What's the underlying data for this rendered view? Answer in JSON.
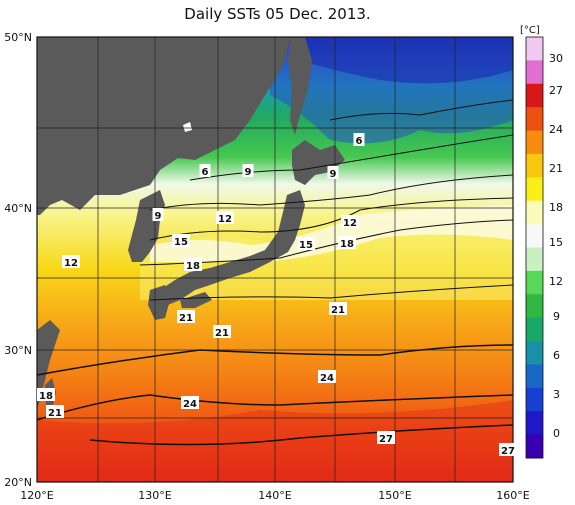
{
  "title": "Daily SSTs 05 Dec. 2013.",
  "colorbar": {
    "unit": "[°C]",
    "ticks": [
      "30",
      "27",
      "24",
      "21",
      "18",
      "15",
      "12",
      "9",
      "6",
      "3",
      "0"
    ],
    "colors": [
      "#f0c8f0",
      "#e070d0",
      "#d81818",
      "#ee5010",
      "#f88c10",
      "#f8c810",
      "#f8f018",
      "#fcfcb8",
      "#f8f8f8",
      "#c8f0c0",
      "#58d858",
      "#30b840",
      "#18a868",
      "#1890a8",
      "#1868c8",
      "#1840d0",
      "#2018c8",
      "#3800b0"
    ]
  },
  "map": {
    "lat_labels": [
      "50°N",
      "40°N",
      "30°N",
      "20°N"
    ],
    "lon_labels": [
      "120°E",
      "130°E",
      "140°E",
      "150°E",
      "160°E"
    ],
    "contour_labels": [
      {
        "id": "c6a",
        "text": "6"
      },
      {
        "id": "c9a",
        "text": "9"
      },
      {
        "id": "c9b",
        "text": "9"
      },
      {
        "id": "c6b",
        "text": "6"
      },
      {
        "id": "c9c",
        "text": "9"
      },
      {
        "id": "c12a",
        "text": "12"
      },
      {
        "id": "c12b",
        "text": "12"
      },
      {
        "id": "c15a",
        "text": "15"
      },
      {
        "id": "c15b",
        "text": "15"
      },
      {
        "id": "c18a",
        "text": "18"
      },
      {
        "id": "c12c",
        "text": "12"
      },
      {
        "id": "c18b",
        "text": "18"
      },
      {
        "id": "c21a",
        "text": "21"
      },
      {
        "id": "c21b",
        "text": "21"
      },
      {
        "id": "c21c",
        "text": "21"
      },
      {
        "id": "c24a",
        "text": "24"
      },
      {
        "id": "c24b",
        "text": "24"
      },
      {
        "id": "c18c",
        "text": "18"
      },
      {
        "id": "c21d",
        "text": "21"
      },
      {
        "id": "c27a",
        "text": "27"
      },
      {
        "id": "c27b",
        "text": "27"
      }
    ]
  }
}
